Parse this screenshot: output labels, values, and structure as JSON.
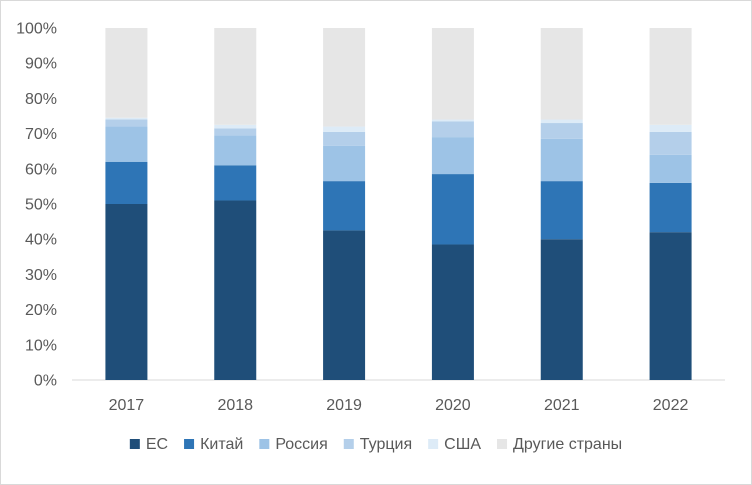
{
  "chart_data": {
    "type": "bar",
    "stacked": true,
    "percent": true,
    "categories": [
      "2017",
      "2018",
      "2019",
      "2020",
      "2021",
      "2022"
    ],
    "y_ticks": [
      "0%",
      "10%",
      "20%",
      "30%",
      "40%",
      "50%",
      "60%",
      "70%",
      "80%",
      "90%",
      "100%"
    ],
    "ylim": [
      0,
      100
    ],
    "grid": false,
    "legend_position": "bottom",
    "series": [
      {
        "name": "ЕС",
        "color": "#1f4e79",
        "values": [
          50,
          51,
          42.5,
          38.5,
          40,
          42
        ]
      },
      {
        "name": "Китай",
        "color": "#2e75b6",
        "values": [
          12,
          10,
          14,
          20,
          16.5,
          14
        ]
      },
      {
        "name": "Россия",
        "color": "#9dc3e6",
        "values": [
          10,
          8.5,
          10,
          10.5,
          12,
          8
        ]
      },
      {
        "name": "Турция",
        "color": "#b4cfea",
        "values": [
          2,
          2,
          4,
          4.5,
          4.5,
          6.5
        ]
      },
      {
        "name": "США",
        "color": "#ddebf7",
        "values": [
          0.5,
          1,
          1.5,
          0.5,
          1,
          2
        ]
      },
      {
        "name": "Другие страны",
        "color": "#e6e6e6",
        "values": [
          25.5,
          27.5,
          28,
          26,
          26,
          27.5
        ]
      }
    ]
  }
}
